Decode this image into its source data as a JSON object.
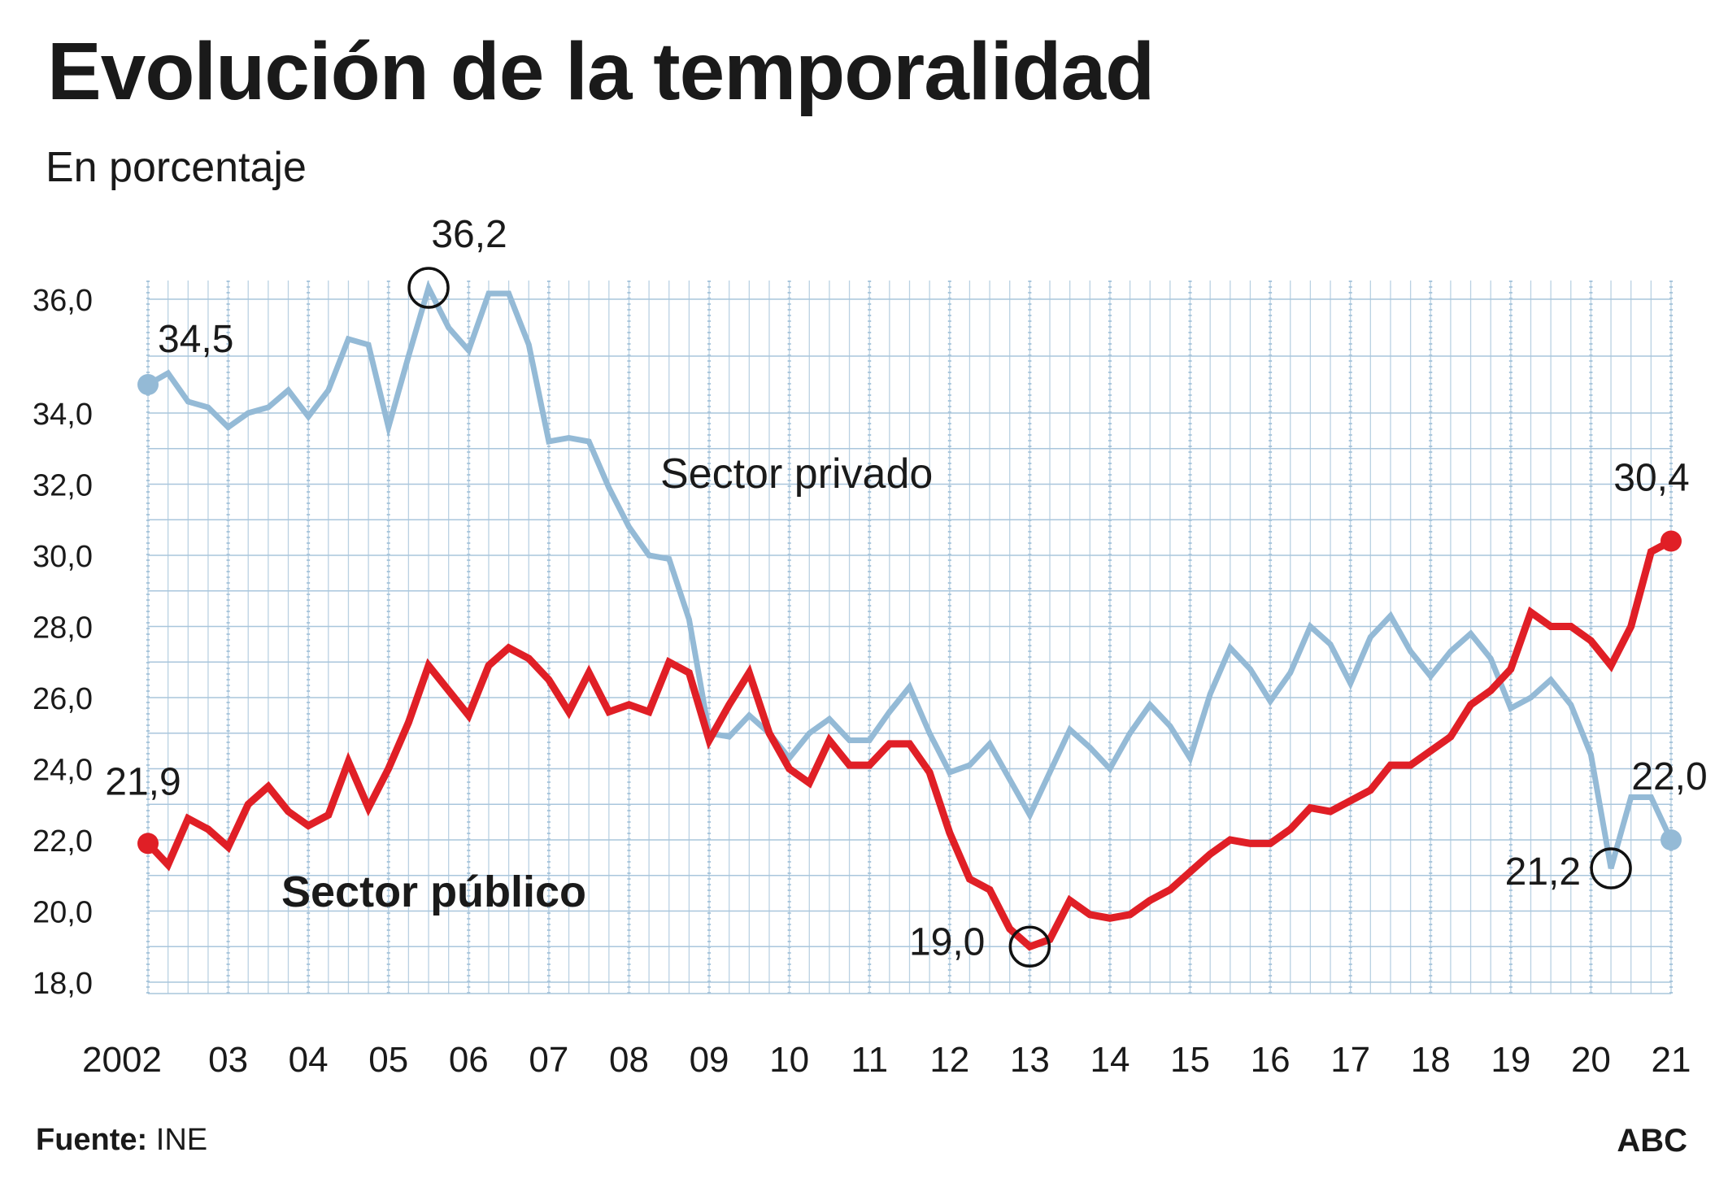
{
  "chart_data": {
    "type": "line",
    "title": "Evolución de la temporalidad",
    "subtitle": "En porcentaje",
    "xlabel": "",
    "ylabel": "",
    "grid": true,
    "x_tick_labels": [
      "2002",
      "03",
      "04",
      "05",
      "06",
      "07",
      "08",
      "09",
      "10",
      "11",
      "12",
      "13",
      "14",
      "15",
      "16",
      "17",
      "18",
      "19",
      "20",
      "21"
    ],
    "y_tick_labels": [
      "18,0",
      "20,0",
      "22,0",
      "24,0",
      "26,0",
      "28,0",
      "30,0",
      "32,0",
      "34,0",
      "36,0"
    ],
    "y_tick_values": [
      18,
      20,
      22,
      24,
      26,
      28,
      30,
      32,
      34,
      36
    ],
    "x_range": [
      2002,
      2021
    ],
    "quarters_per_year": 4,
    "colors": {
      "privado": "#94bad6",
      "publico": "#e01f26",
      "grid": "#a9c6dc",
      "text": "#1a1a1a"
    },
    "series": [
      {
        "name": "Sector privado",
        "label": "Sector privado",
        "color": "#94bad6",
        "values": [
          34.5,
          34.7,
          34.2,
          34.1,
          33.6,
          34.0,
          34.1,
          34.4,
          33.9,
          34.4,
          35.3,
          35.2,
          33.6,
          35.0,
          36.2,
          35.5,
          35.1,
          36.1,
          36.1,
          35.2,
          33.2,
          33.3,
          33.2,
          31.9,
          30.8,
          30.0,
          29.9,
          28.2,
          25.0,
          24.9,
          25.5,
          25.0,
          24.3,
          25.0,
          25.4,
          24.8,
          24.8,
          25.6,
          26.3,
          25.0,
          23.9,
          24.1,
          24.7,
          23.7,
          22.7,
          23.9,
          25.1,
          24.6,
          24.0,
          25.0,
          25.8,
          25.2,
          24.3,
          26.1,
          27.4,
          26.8,
          25.9,
          26.7,
          28.0,
          27.5,
          26.4,
          27.7,
          28.3,
          27.3,
          26.6,
          27.3,
          27.8,
          27.1,
          25.7,
          26.0,
          26.5,
          25.8,
          24.4,
          21.2,
          23.2,
          23.2,
          22.0
        ]
      },
      {
        "name": "Sector público",
        "label": "Sector público",
        "color": "#e01f26",
        "values": [
          21.9,
          21.3,
          22.6,
          22.3,
          21.8,
          23.0,
          23.5,
          22.8,
          22.4,
          22.7,
          24.2,
          22.9,
          24.0,
          25.3,
          26.9,
          26.2,
          25.5,
          26.9,
          27.4,
          27.1,
          26.5,
          25.6,
          26.7,
          25.6,
          25.8,
          25.6,
          27.0,
          26.7,
          24.8,
          25.8,
          26.7,
          25.0,
          24.0,
          23.6,
          24.8,
          24.1,
          24.1,
          24.7,
          24.7,
          23.9,
          22.2,
          20.9,
          20.6,
          19.5,
          19.0,
          19.2,
          20.3,
          19.9,
          19.8,
          19.9,
          20.3,
          20.6,
          21.1,
          21.6,
          22.0,
          21.9,
          21.9,
          22.3,
          22.9,
          22.8,
          23.1,
          23.4,
          24.1,
          24.1,
          24.5,
          24.9,
          25.8,
          26.2,
          26.8,
          28.4,
          28.0,
          28.0,
          27.6,
          26.9,
          28.0,
          30.1,
          30.4
        ]
      }
    ],
    "annotations": [
      {
        "series": 0,
        "index": 0,
        "text": "34,5",
        "marker": "dot"
      },
      {
        "series": 0,
        "index": 14,
        "text": "36,2",
        "marker": "circle"
      },
      {
        "series": 0,
        "index": 73,
        "text": "21,2",
        "marker": "circle"
      },
      {
        "series": 0,
        "index": 76,
        "text": "22,0",
        "marker": "dot"
      },
      {
        "series": 1,
        "index": 0,
        "text": "21,9",
        "marker": "dot"
      },
      {
        "series": 1,
        "index": 44,
        "text": "19,0",
        "marker": "circle"
      },
      {
        "series": 1,
        "index": 76,
        "text": "30,4",
        "marker": "dot"
      }
    ]
  },
  "footer": {
    "source_label": "Fuente:",
    "source_value": "INE",
    "brand": "ABC"
  }
}
